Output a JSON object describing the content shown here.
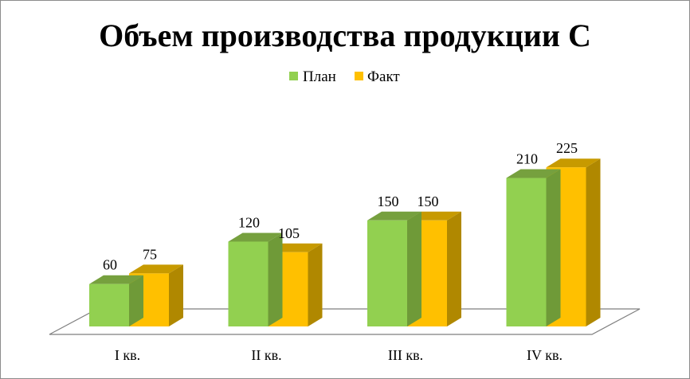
{
  "chart_data": {
    "type": "bar",
    "title": "Объем производства продукции С",
    "categories": [
      "I кв.",
      "II кв.",
      "III кв.",
      "IV кв."
    ],
    "series": [
      {
        "name": "План",
        "values": [
          60,
          120,
          150,
          210
        ],
        "color": "#92d050",
        "top_color": "#76a03e",
        "side_color": "#6f9a38"
      },
      {
        "name": "Факт",
        "values": [
          75,
          105,
          150,
          225
        ],
        "color": "#ffc000",
        "top_color": "#c79a00",
        "side_color": "#b08800"
      }
    ],
    "legend_position": "top",
    "grid": false,
    "view_3d": true
  }
}
